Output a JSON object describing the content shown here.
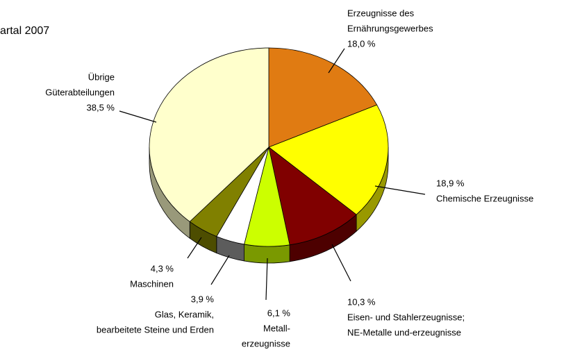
{
  "chart_data": {
    "type": "pie",
    "title": "artal 2007",
    "categories": [
      [
        "Erzeugnisse des",
        "Ernährungsgewerbes"
      ],
      [
        "Chemische Erzeugnisse"
      ],
      [
        "Eisen- und Stahlerzeugnisse;",
        "NE-Metalle und-erzeugnisse"
      ],
      [
        "Metall-",
        "erzeugnisse"
      ],
      [
        "Glas, Keramik,",
        "bearbeitete Steine und Erden"
      ],
      [
        "Maschinen"
      ],
      [
        "Übrige",
        "Güterabteilungen"
      ]
    ],
    "values": [
      18.0,
      18.9,
      10.3,
      6.1,
      3.9,
      4.3,
      38.5
    ],
    "value_labels": [
      "18,0 %",
      "18,9 %",
      "10,3 %",
      "6,1 %",
      "3,9 %",
      "4,3 %",
      "38,5 %"
    ],
    "colors": [
      "#e07b12",
      "#ffff00",
      "#800000",
      "#ccff00",
      "#ffffff",
      "#808000",
      "#ffffcc"
    ]
  }
}
